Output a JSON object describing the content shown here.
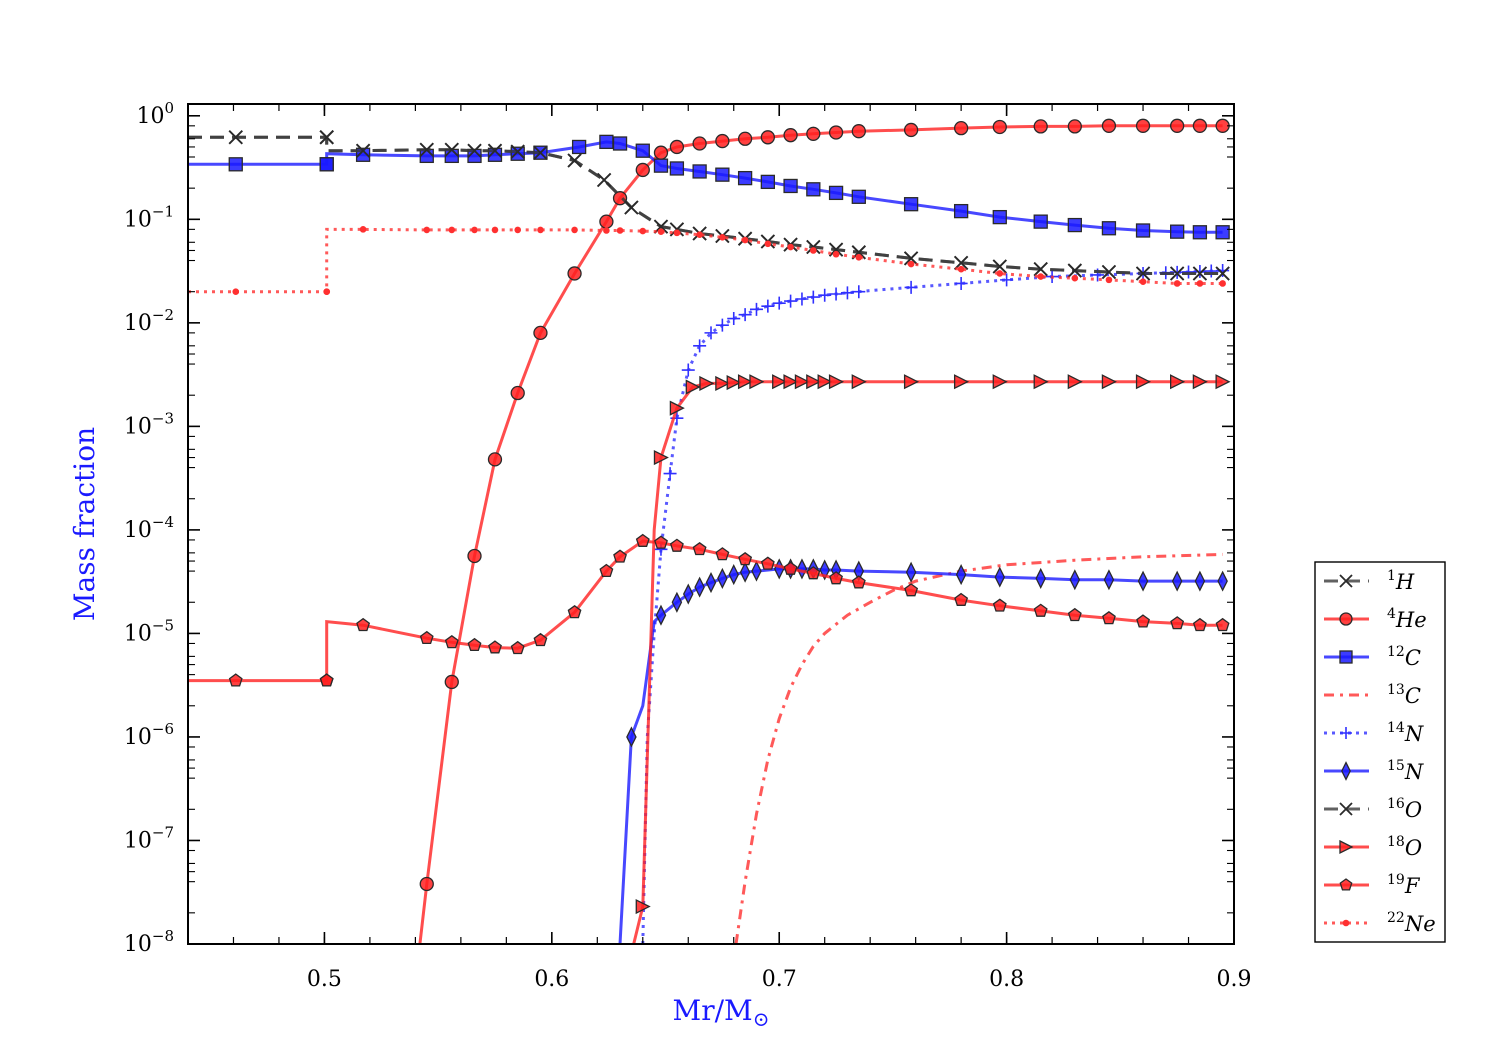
{
  "chart_data": {
    "type": "line",
    "title": "",
    "xlabel": "Mr/M",
    "xlabel_sub": "⊙",
    "ylabel": "Mass fraction",
    "xlim": [
      0.44,
      0.9
    ],
    "ylim": [
      1e-08,
      1.3
    ],
    "yscale": "log",
    "x_ticks": [
      0.5,
      0.6,
      0.7,
      0.8,
      0.9
    ],
    "x_tick_labels": [
      "0.5",
      "0.6",
      "0.7",
      "0.8",
      "0.9"
    ],
    "y_ticks": [
      {
        "value": 1,
        "base": "10",
        "exp": "0"
      },
      {
        "value": 0.1,
        "base": "10",
        "exp": "−1"
      },
      {
        "value": 0.01,
        "base": "10",
        "exp": "−2"
      },
      {
        "value": 0.001,
        "base": "10",
        "exp": "−3"
      },
      {
        "value": 0.0001,
        "base": "10",
        "exp": "−4"
      },
      {
        "value": 1e-05,
        "base": "10",
        "exp": "−5"
      },
      {
        "value": 1e-06,
        "base": "10",
        "exp": "−6"
      },
      {
        "value": 1e-07,
        "base": "10",
        "exp": "−7"
      },
      {
        "value": 1e-08,
        "base": "10",
        "exp": "−8"
      }
    ],
    "grid": false,
    "legend_position": "right",
    "series": [
      {
        "name": "1H",
        "sup": "1",
        "el": "H",
        "color": "#3a3a3a",
        "dash": "14,8",
        "marker": "x",
        "x": [
          0.44,
          0.461,
          0.501,
          0.501,
          0.517,
          0.545,
          0.556,
          0.566,
          0.575,
          0.585,
          0.595,
          0.61,
          0.623,
          0.635,
          0.648,
          0.655,
          0.665,
          0.675,
          0.685,
          0.695,
          0.705,
          0.715,
          0.725,
          0.735,
          0.758,
          0.78,
          0.797,
          0.815,
          0.83,
          0.845,
          0.86,
          0.875,
          0.885,
          0.895
        ],
        "y": [
          0.62,
          0.62,
          0.62,
          0.46,
          0.46,
          0.47,
          0.47,
          0.46,
          0.46,
          0.45,
          0.44,
          0.37,
          0.24,
          0.13,
          0.085,
          0.08,
          0.073,
          0.069,
          0.065,
          0.061,
          0.057,
          0.054,
          0.051,
          0.048,
          0.042,
          0.038,
          0.035,
          0.033,
          0.032,
          0.031,
          0.03,
          0.03,
          0.03,
          0.03
        ],
        "markers_x": [
          0.461,
          0.501,
          0.501,
          0.517,
          0.545,
          0.556,
          0.566,
          0.575,
          0.585,
          0.595,
          0.61,
          0.623,
          0.635,
          0.648,
          0.655,
          0.665,
          0.675,
          0.685,
          0.695,
          0.705,
          0.715,
          0.725,
          0.735,
          0.758,
          0.78,
          0.797,
          0.815,
          0.83,
          0.845,
          0.86,
          0.875,
          0.885,
          0.895
        ]
      },
      {
        "name": "4He",
        "sup": "4",
        "el": "He",
        "color": "#ff2020",
        "dash": "",
        "marker": "o",
        "x": [
          0.542,
          0.545,
          0.556,
          0.566,
          0.575,
          0.585,
          0.595,
          0.61,
          0.624,
          0.63,
          0.64,
          0.648,
          0.655,
          0.665,
          0.675,
          0.685,
          0.695,
          0.705,
          0.715,
          0.725,
          0.735,
          0.758,
          0.78,
          0.797,
          0.815,
          0.83,
          0.845,
          0.86,
          0.875,
          0.885,
          0.895
        ],
        "y": [
          1e-08,
          3.8e-08,
          3.4e-06,
          5.6e-05,
          0.00048,
          0.0021,
          0.008,
          0.03,
          0.095,
          0.16,
          0.3,
          0.44,
          0.5,
          0.54,
          0.57,
          0.6,
          0.62,
          0.65,
          0.67,
          0.69,
          0.71,
          0.73,
          0.76,
          0.78,
          0.79,
          0.79,
          0.8,
          0.8,
          0.8,
          0.8,
          0.8
        ],
        "markers_x": [
          0.545,
          0.556,
          0.566,
          0.575,
          0.585,
          0.595,
          0.61,
          0.624,
          0.63,
          0.64,
          0.648,
          0.655,
          0.665,
          0.675,
          0.685,
          0.695,
          0.705,
          0.715,
          0.725,
          0.735,
          0.758,
          0.78,
          0.797,
          0.815,
          0.83,
          0.845,
          0.86,
          0.875,
          0.885,
          0.895
        ]
      },
      {
        "name": "12C",
        "sup": "12",
        "el": "C",
        "color": "#1a1aff",
        "dash": "",
        "marker": "s",
        "x": [
          0.44,
          0.461,
          0.501,
          0.501,
          0.517,
          0.545,
          0.556,
          0.566,
          0.575,
          0.585,
          0.595,
          0.612,
          0.624,
          0.63,
          0.64,
          0.648,
          0.655,
          0.665,
          0.675,
          0.685,
          0.695,
          0.705,
          0.715,
          0.725,
          0.735,
          0.758,
          0.78,
          0.797,
          0.815,
          0.83,
          0.845,
          0.86,
          0.875,
          0.885,
          0.895
        ],
        "y": [
          0.34,
          0.34,
          0.34,
          0.43,
          0.42,
          0.41,
          0.41,
          0.41,
          0.42,
          0.43,
          0.44,
          0.5,
          0.56,
          0.54,
          0.46,
          0.33,
          0.31,
          0.29,
          0.27,
          0.25,
          0.23,
          0.21,
          0.195,
          0.18,
          0.165,
          0.14,
          0.12,
          0.105,
          0.095,
          0.088,
          0.082,
          0.078,
          0.076,
          0.075,
          0.075
        ],
        "markers_x": [
          0.461,
          0.501,
          0.501,
          0.517,
          0.545,
          0.556,
          0.566,
          0.575,
          0.585,
          0.595,
          0.612,
          0.624,
          0.63,
          0.64,
          0.648,
          0.655,
          0.665,
          0.675,
          0.685,
          0.695,
          0.705,
          0.715,
          0.725,
          0.735,
          0.758,
          0.78,
          0.797,
          0.815,
          0.83,
          0.845,
          0.86,
          0.875,
          0.885,
          0.895
        ]
      },
      {
        "name": "13C",
        "sup": "13",
        "el": "C",
        "color": "#ff3030",
        "dash": "10,6,3,6",
        "marker": "",
        "x": [
          0.681,
          0.685,
          0.69,
          0.695,
          0.7,
          0.705,
          0.71,
          0.715,
          0.72,
          0.73,
          0.74,
          0.75,
          0.76,
          0.78,
          0.8,
          0.83,
          0.86,
          0.895
        ],
        "y": [
          1e-08,
          4e-08,
          1.8e-07,
          6e-07,
          1.5e-06,
          3e-06,
          5e-06,
          7.5e-06,
          1e-05,
          1.5e-05,
          2e-05,
          2.6e-05,
          3.2e-05,
          4e-05,
          4.6e-05,
          5.1e-05,
          5.5e-05,
          5.8e-05
        ],
        "markers_x": []
      },
      {
        "name": "14N",
        "sup": "14",
        "el": "N",
        "color": "#3030ff",
        "dash": "3,5",
        "marker": "+",
        "x": [
          0.64,
          0.642,
          0.645,
          0.648,
          0.652,
          0.655,
          0.66,
          0.665,
          0.67,
          0.675,
          0.68,
          0.685,
          0.69,
          0.695,
          0.7,
          0.71,
          0.72,
          0.73,
          0.74,
          0.758,
          0.78,
          0.8,
          0.82,
          0.84,
          0.86,
          0.88,
          0.895
        ],
        "y": [
          1e-08,
          1e-06,
          1e-05,
          6.5e-05,
          0.00035,
          0.0012,
          0.0035,
          0.006,
          0.008,
          0.0095,
          0.011,
          0.012,
          0.0135,
          0.0145,
          0.0155,
          0.017,
          0.0185,
          0.0195,
          0.0205,
          0.022,
          0.024,
          0.026,
          0.028,
          0.029,
          0.03,
          0.031,
          0.032
        ],
        "markers_x": [
          0.648,
          0.652,
          0.655,
          0.66,
          0.665,
          0.67,
          0.675,
          0.68,
          0.685,
          0.69,
          0.695,
          0.7,
          0.705,
          0.71,
          0.715,
          0.72,
          0.725,
          0.73,
          0.735,
          0.758,
          0.78,
          0.8,
          0.82,
          0.84,
          0.86,
          0.87,
          0.875,
          0.88,
          0.885,
          0.89,
          0.895
        ]
      },
      {
        "name": "15N",
        "sup": "15",
        "el": "N",
        "color": "#1a1aff",
        "dash": "",
        "marker": "d",
        "x": [
          0.63,
          0.635,
          0.64,
          0.645,
          0.648,
          0.655,
          0.66,
          0.665,
          0.67,
          0.675,
          0.68,
          0.685,
          0.69,
          0.7,
          0.705,
          0.71,
          0.715,
          0.72,
          0.725,
          0.735,
          0.758,
          0.78,
          0.797,
          0.815,
          0.83,
          0.845,
          0.86,
          0.875,
          0.885,
          0.895
        ],
        "y": [
          1e-08,
          1e-06,
          2e-06,
          1.3e-05,
          1.5e-05,
          2e-05,
          2.4e-05,
          2.8e-05,
          3.1e-05,
          3.4e-05,
          3.7e-05,
          3.9e-05,
          4e-05,
          4.2e-05,
          4.2e-05,
          4.2e-05,
          4.2e-05,
          4.1e-05,
          4.1e-05,
          4e-05,
          3.9e-05,
          3.7e-05,
          3.5e-05,
          3.4e-05,
          3.3e-05,
          3.3e-05,
          3.2e-05,
          3.2e-05,
          3.2e-05,
          3.2e-05
        ],
        "markers_x": [
          0.635,
          0.648,
          0.655,
          0.66,
          0.665,
          0.67,
          0.675,
          0.68,
          0.685,
          0.69,
          0.7,
          0.705,
          0.71,
          0.715,
          0.72,
          0.725,
          0.735,
          0.758,
          0.78,
          0.797,
          0.815,
          0.83,
          0.845,
          0.86,
          0.875,
          0.885,
          0.895
        ]
      },
      {
        "name": "16O",
        "sup": "16",
        "el": "O",
        "color": "#3a3a3a",
        "dash": "14,8",
        "marker": "x",
        "x": [],
        "y": [],
        "markers_x": []
      },
      {
        "name": "18O",
        "sup": "18",
        "el": "O",
        "color": "#ff2020",
        "dash": "",
        "marker": ">",
        "x": [
          0.636,
          0.64,
          0.645,
          0.648,
          0.655,
          0.662,
          0.668,
          0.675,
          0.685,
          0.7,
          0.72,
          0.735,
          0.758,
          0.78,
          0.8,
          0.83,
          0.86,
          0.895
        ],
        "y": [
          1e-08,
          2.3e-08,
          0.0001,
          0.0005,
          0.0015,
          0.0024,
          0.0026,
          0.0026,
          0.0027,
          0.0027,
          0.0027,
          0.0027,
          0.0027,
          0.0027,
          0.0027,
          0.0027,
          0.0027,
          0.0027
        ],
        "markers_x": [
          0.64,
          0.648,
          0.655,
          0.662,
          0.668,
          0.675,
          0.68,
          0.685,
          0.69,
          0.7,
          0.705,
          0.71,
          0.715,
          0.72,
          0.725,
          0.735,
          0.758,
          0.78,
          0.797,
          0.815,
          0.83,
          0.845,
          0.86,
          0.875,
          0.885,
          0.895
        ]
      },
      {
        "name": "19F",
        "sup": "19",
        "el": "F",
        "color": "#ff2020",
        "dash": "",
        "marker": "p",
        "x": [
          0.44,
          0.461,
          0.501,
          0.501,
          0.517,
          0.545,
          0.556,
          0.566,
          0.575,
          0.585,
          0.595,
          0.61,
          0.624,
          0.63,
          0.64,
          0.648,
          0.655,
          0.665,
          0.675,
          0.685,
          0.695,
          0.705,
          0.715,
          0.725,
          0.735,
          0.758,
          0.78,
          0.797,
          0.815,
          0.83,
          0.845,
          0.86,
          0.875,
          0.885,
          0.895
        ],
        "y": [
          3.5e-06,
          3.5e-06,
          3.5e-06,
          1.3e-05,
          1.2e-05,
          9e-06,
          8.2e-06,
          7.7e-06,
          7.3e-06,
          7.2e-06,
          8.6e-06,
          1.6e-05,
          4e-05,
          5.5e-05,
          7.8e-05,
          7.5e-05,
          7e-05,
          6.5e-05,
          5.8e-05,
          5.2e-05,
          4.7e-05,
          4.2e-05,
          3.8e-05,
          3.4e-05,
          3.1e-05,
          2.6e-05,
          2.1e-05,
          1.85e-05,
          1.65e-05,
          1.5e-05,
          1.4e-05,
          1.3e-05,
          1.25e-05,
          1.2e-05,
          1.2e-05
        ],
        "markers_x": [
          0.461,
          0.501,
          0.501,
          0.517,
          0.545,
          0.556,
          0.566,
          0.575,
          0.585,
          0.595,
          0.61,
          0.624,
          0.63,
          0.64,
          0.648,
          0.655,
          0.665,
          0.675,
          0.685,
          0.695,
          0.705,
          0.715,
          0.725,
          0.735,
          0.758,
          0.78,
          0.797,
          0.815,
          0.83,
          0.845,
          0.86,
          0.875,
          0.885,
          0.895
        ]
      },
      {
        "name": "22Ne",
        "sup": "22",
        "el": "Ne",
        "color": "#ff3030",
        "dash": "3,5",
        "marker": ".",
        "x": [
          0.44,
          0.461,
          0.501,
          0.501,
          0.517,
          0.545,
          0.556,
          0.566,
          0.575,
          0.585,
          0.595,
          0.61,
          0.624,
          0.63,
          0.64,
          0.648,
          0.655,
          0.665,
          0.675,
          0.685,
          0.695,
          0.705,
          0.715,
          0.725,
          0.735,
          0.758,
          0.78,
          0.797,
          0.815,
          0.83,
          0.845,
          0.86,
          0.875,
          0.885,
          0.895
        ],
        "y": [
          0.02,
          0.02,
          0.02,
          0.08,
          0.08,
          0.079,
          0.079,
          0.079,
          0.079,
          0.079,
          0.079,
          0.079,
          0.078,
          0.078,
          0.077,
          0.076,
          0.074,
          0.071,
          0.067,
          0.063,
          0.058,
          0.054,
          0.05,
          0.046,
          0.043,
          0.037,
          0.033,
          0.03,
          0.028,
          0.027,
          0.026,
          0.025,
          0.024,
          0.024,
          0.024
        ],
        "markers_x": [
          0.461,
          0.501,
          0.501,
          0.517,
          0.545,
          0.556,
          0.566,
          0.575,
          0.585,
          0.595,
          0.61,
          0.624,
          0.63,
          0.64,
          0.648,
          0.655,
          0.665,
          0.675,
          0.685,
          0.695,
          0.705,
          0.715,
          0.725,
          0.735,
          0.758,
          0.78,
          0.797,
          0.815,
          0.83,
          0.845,
          0.86,
          0.875,
          0.885,
          0.895
        ]
      }
    ]
  }
}
